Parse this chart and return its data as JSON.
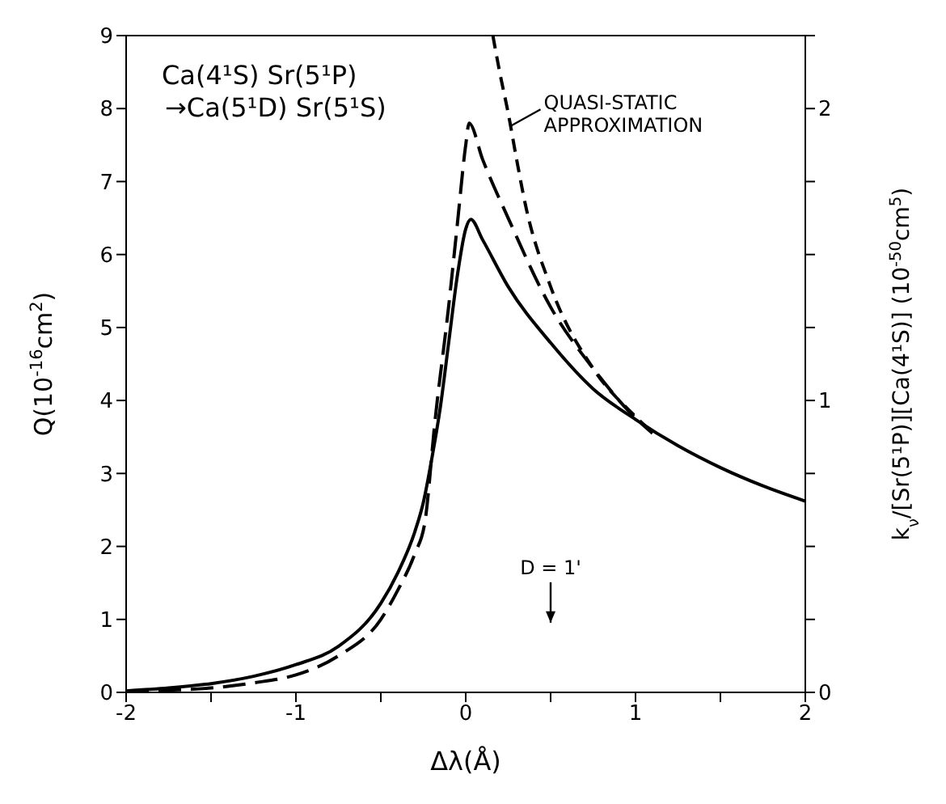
{
  "chart_data": {
    "type": "line",
    "xlabel": "Δλ(Å)",
    "ylabel": "Q(10$^{-16}$cm$^{2}$)",
    "y2label": "k$_{ν}$/[Sr(5¹P)][Ca(4¹S)] (10$^{-50}$cm$^{5}$)",
    "annotations": [
      "Ca(4¹S) Sr(5¹P)",
      "→Ca(5¹D) Sr(5¹S)",
      {
        "text": "QUASI-STATIC APPROXIMATION",
        "x": 0.25,
        "y": 7.9
      },
      "D = 1'"
    ],
    "xlim": [
      -2,
      2
    ],
    "xticks": [
      -2,
      {
        "value": -1.5,
        "label": null
      },
      -1,
      {
        "value": -0.5,
        "label": null
      },
      0,
      {
        "value": 0.5,
        "label": null
      },
      1,
      {
        "value": 1.5,
        "label": null
      },
      2
    ],
    "ylim": [
      0,
      9
    ],
    "yticks": [
      0,
      1,
      2,
      3,
      4,
      5,
      6,
      7,
      8,
      9
    ],
    "y2lim": [
      0,
      2.25
    ],
    "y2ticks": [
      0,
      {
        "value": 0.25,
        "label": null
      },
      {
        "value": 0.5,
        "label": null
      },
      {
        "value": 0.75,
        "label": null
      },
      1,
      {
        "value": 1.25,
        "label": null
      },
      {
        "value": 1.5,
        "label": null
      },
      {
        "value": 1.75,
        "label": null
      },
      2,
      {
        "value": 2.25,
        "label": null
      }
    ],
    "marker": "none",
    "series": [
      {
        "color": "#000000",
        "line_style": "solid",
        "x": [
          -2,
          -1.75,
          -1.5,
          -1.25,
          -1,
          -0.75,
          -0.5,
          -0.4,
          -0.3,
          -0.25,
          -0.2,
          -0.15,
          -0.1,
          -0.05,
          0,
          0.03,
          0.1,
          0.25,
          0.5,
          0.75,
          1,
          1.25,
          1.5,
          1.75,
          2
        ],
        "values": [
          0.02,
          0.06,
          0.12,
          0.22,
          0.38,
          0.63,
          1.22,
          1.64,
          2.2,
          2.6,
          3.2,
          3.9,
          4.8,
          5.7,
          6.35,
          6.48,
          6.2,
          5.56,
          4.79,
          4.16,
          3.74,
          3.38,
          3.08,
          2.83,
          2.62
        ]
      },
      {
        "color": "#000000",
        "line_style": "dashed",
        "x": [
          -2,
          -1.75,
          -1.5,
          -1.25,
          -1,
          -0.75,
          -0.5,
          -0.4,
          -0.3,
          -0.24,
          -0.18,
          -0.1,
          -0.05,
          0,
          0.02,
          0.1,
          0.25,
          0.5,
          0.75,
          1,
          1.1
        ],
        "values": [
          0.01,
          0.03,
          0.06,
          0.13,
          0.24,
          0.5,
          1.0,
          1.4,
          1.9,
          2.34,
          3.74,
          5.3,
          6.4,
          7.5,
          7.8,
          7.3,
          6.5,
          5.28,
          4.44,
          3.76,
          3.55
        ]
      },
      {
        "color": "#000000",
        "line_style": "dotted",
        "x": [
          0.16,
          0.2,
          0.25,
          0.3,
          0.35,
          0.5,
          0.75,
          1,
          1.1
        ],
        "values": [
          9,
          8.5,
          7.94,
          7.3,
          6.7,
          5.56,
          4.44,
          3.78,
          3.56
        ]
      }
    ]
  }
}
